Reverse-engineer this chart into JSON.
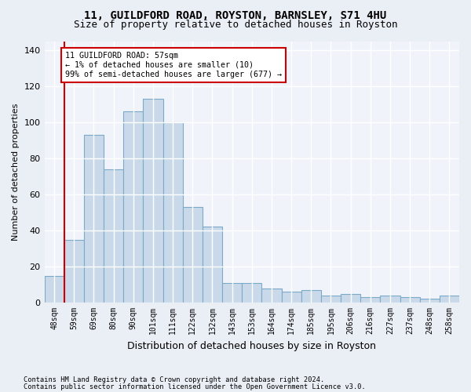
{
  "title1": "11, GUILDFORD ROAD, ROYSTON, BARNSLEY, S71 4HU",
  "title2": "Size of property relative to detached houses in Royston",
  "xlabel": "Distribution of detached houses by size in Royston",
  "ylabel": "Number of detached properties",
  "categories": [
    "48sqm",
    "59sqm",
    "69sqm",
    "80sqm",
    "90sqm",
    "101sqm",
    "111sqm",
    "122sqm",
    "132sqm",
    "143sqm",
    "153sqm",
    "164sqm",
    "174sqm",
    "185sqm",
    "195sqm",
    "206sqm",
    "216sqm",
    "227sqm",
    "237sqm",
    "248sqm",
    "258sqm"
  ],
  "values": [
    15,
    35,
    93,
    74,
    106,
    113,
    100,
    53,
    42,
    11,
    11,
    8,
    6,
    7,
    4,
    5,
    3,
    4,
    3,
    2,
    4
  ],
  "bar_color": "#c9d9ea",
  "bar_edge_color": "#7aaac8",
  "vline_color": "#cc0000",
  "annotation_text": "11 GUILDFORD ROAD: 57sqm\n← 1% of detached houses are smaller (10)\n99% of semi-detached houses are larger (677) →",
  "annotation_box_color": "#ffffff",
  "annotation_box_edge_color": "#cc0000",
  "ylim": [
    0,
    145
  ],
  "yticks": [
    0,
    20,
    40,
    60,
    80,
    100,
    120,
    140
  ],
  "footer1": "Contains HM Land Registry data © Crown copyright and database right 2024.",
  "footer2": "Contains public sector information licensed under the Open Government Licence v3.0.",
  "bg_color": "#eaeef5",
  "plot_bg_color": "#f0f4fa",
  "grid_color": "#ffffff",
  "title1_fontsize": 10,
  "title2_fontsize": 9
}
